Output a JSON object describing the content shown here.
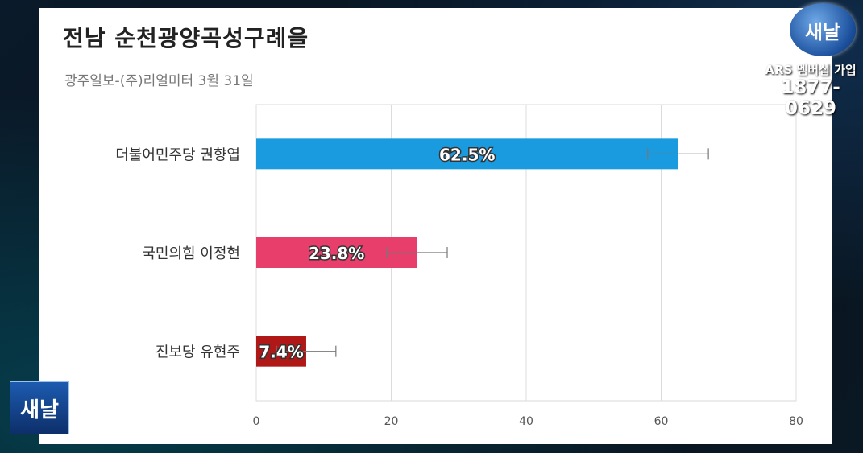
{
  "chart_data": {
    "type": "bar",
    "orientation": "horizontal",
    "title": "전남 순천광양곡성구례을",
    "subtitle": "광주일보-(주)리얼미터 3월 31일",
    "categories": [
      "더불어민주당 권향엽",
      "국민의힘 이정현",
      "진보당 유현주"
    ],
    "values": [
      62.5,
      23.8,
      7.4
    ],
    "value_labels": [
      "62.5%",
      "23.8%",
      "7.4%"
    ],
    "error_low": [
      58.0,
      19.3,
      3.0
    ],
    "error_high": [
      67.0,
      28.3,
      11.8
    ],
    "bar_colors": [
      "#1a9be0",
      "#e83e6c",
      "#b01818"
    ],
    "xlim": [
      0,
      80
    ],
    "xticks": [
      0,
      20,
      40,
      60,
      80
    ],
    "grid": true
  },
  "branding": {
    "logo_text": "새날",
    "ars_text": "ARS 멤버십 가입",
    "phone": "1877-0629"
  }
}
